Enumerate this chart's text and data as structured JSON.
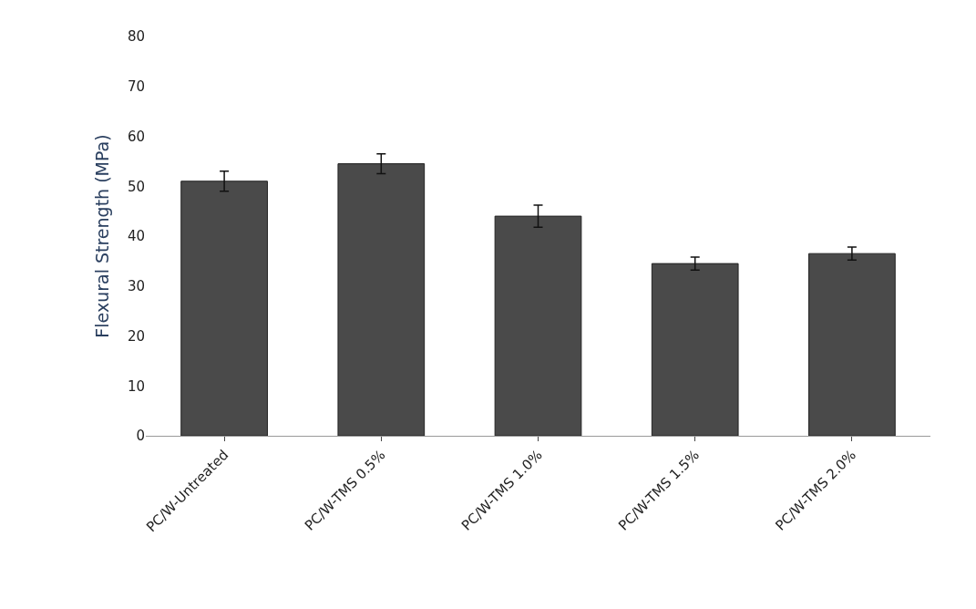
{
  "chart_data": {
    "type": "bar",
    "ylabel": "Flexural Strength (MPa)",
    "categories": [
      "PC/W-Untreated",
      "PC/W-TMS 0.5%",
      "PC/W-TMS 1.0%",
      "PC/W-TMS 1.5%",
      "PC/W-TMS 2.0%"
    ],
    "values": [
      51,
      54.5,
      44,
      34.5,
      36.5
    ],
    "errors": [
      2,
      2,
      2.2,
      1.3,
      1.3
    ],
    "color": "#4a4a4a",
    "ylim": [
      0,
      80
    ],
    "yticks": [
      0,
      10,
      20,
      30,
      40,
      50,
      60,
      70,
      80
    ],
    "legend": false
  }
}
